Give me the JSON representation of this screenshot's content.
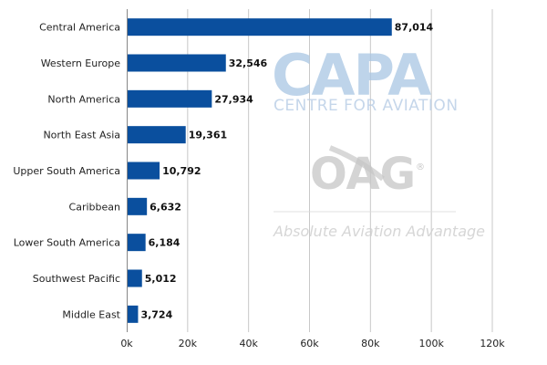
{
  "chart_data": {
    "type": "bar",
    "orientation": "horizontal",
    "categories": [
      "Central America",
      "Western Europe",
      "North America",
      "North East Asia",
      "Upper South America",
      "Caribbean",
      "Lower South America",
      "Southwest Pacific",
      "Middle East"
    ],
    "values": [
      87014,
      32546,
      27934,
      19361,
      10792,
      6632,
      6184,
      5012,
      3724
    ],
    "value_labels": [
      "87,014",
      "32,546",
      "27,934",
      "19,361",
      "10,792",
      "6,632",
      "6,184",
      "5,012",
      "3,724"
    ],
    "xlim": [
      0,
      120000
    ],
    "x_ticks": [
      0,
      20000,
      40000,
      60000,
      80000,
      100000,
      120000
    ],
    "x_tick_labels": [
      "0k",
      "20k",
      "40k",
      "60k",
      "80k",
      "100k",
      "120k"
    ],
    "grid": "vertical",
    "bar_color": "#0a4f9e",
    "legend": "none"
  },
  "watermark": {
    "capa": "CAPA",
    "capa_sub": "CENTRE FOR AVIATION",
    "oag": "OAG",
    "oag_reg": "®",
    "oag_tagline": "Absolute Aviation Advantage"
  }
}
